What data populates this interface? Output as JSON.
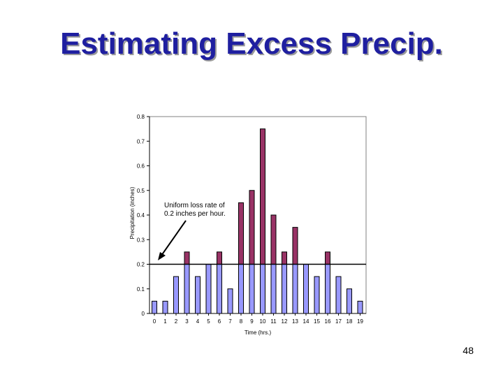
{
  "slide": {
    "title": "Estimating Excess Precip.",
    "page_number": "48"
  },
  "colors": {
    "title": "#1f1fa0",
    "loss_bar": "#9999ff",
    "excess_bar": "#993366",
    "bar_stroke": "#000000"
  },
  "chart_data": {
    "type": "bar",
    "stacked": true,
    "categories": [
      "0",
      "1",
      "2",
      "3",
      "4",
      "5",
      "6",
      "7",
      "8",
      "9",
      "10",
      "11",
      "12",
      "13",
      "14",
      "15",
      "16",
      "17",
      "18",
      "19"
    ],
    "series": [
      {
        "values": [
          0.05,
          0.05,
          0.15,
          0.2,
          0.15,
          0.2,
          0.2,
          0.1,
          0.2,
          0.2,
          0.2,
          0.2,
          0.2,
          0.2,
          0.2,
          0.15,
          0.2,
          0.15,
          0.1,
          0.05
        ]
      },
      {
        "values": [
          0,
          0,
          0,
          0.05,
          0,
          0,
          0.05,
          0,
          0.25,
          0.3,
          0.55,
          0.2,
          0.05,
          0.15,
          0,
          0,
          0.05,
          0,
          0,
          0
        ]
      }
    ],
    "xlabel": "Time (hrs.)",
    "ylabel": "Precipitation (inches)",
    "ylim": [
      0,
      0.8
    ],
    "yticks": [
      "0",
      "0.1",
      "0.2",
      "0.3",
      "0.4",
      "0.5",
      "0.6",
      "0.7",
      "0.8"
    ],
    "reference_line": {
      "y": 0.2
    },
    "annotation": {
      "lines": [
        "Uniform loss rate of",
        "0.2 inches per hour."
      ]
    },
    "grid": false,
    "legend": "none"
  }
}
